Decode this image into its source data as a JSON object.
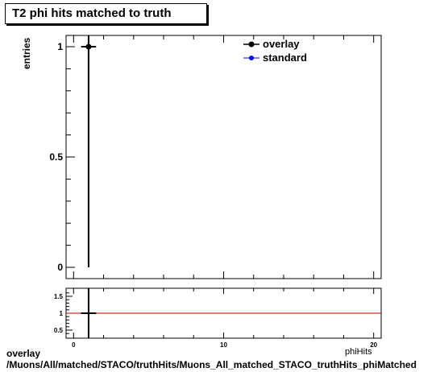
{
  "title": "T2 phi hits matched to truth",
  "ylabel": "entries",
  "xlabel_partial": "phiHits",
  "legend": [
    {
      "name": "overlay",
      "color": "#000000"
    },
    {
      "name": "standard",
      "color": "#0000ff"
    }
  ],
  "footer": {
    "line1": "overlay",
    "line2": "/Muons/All/matched/STACO/truthHits/Muons_All_matched_STACO_truthHits_phiMatched"
  },
  "chart_data": [
    {
      "type": "scatter",
      "panel": "main",
      "xlim": [
        -0.5,
        20.5
      ],
      "ylim": [
        0,
        1.05
      ],
      "yticks": [
        0,
        0.5,
        1
      ],
      "ytick_labels": [
        "0",
        "0.5",
        "1"
      ],
      "series": [
        {
          "name": "overlay",
          "x": [
            1
          ],
          "y": [
            1
          ],
          "yerr": [
            1
          ],
          "xerr": [
            0.5
          ],
          "color": "#000000"
        },
        {
          "name": "standard",
          "x": [],
          "y": [],
          "color": "#0000ff"
        }
      ]
    },
    {
      "type": "line",
      "panel": "ratio",
      "xlim": [
        -0.5,
        20.5
      ],
      "ylim": [
        0.3,
        1.7
      ],
      "yticks": [
        0.5,
        1,
        1.5
      ],
      "ytick_labels": [
        "0.5",
        "1",
        "1.5"
      ],
      "xticks": [
        0,
        10,
        20
      ],
      "xtick_labels": [
        "0",
        "10",
        "20"
      ],
      "reference_line": {
        "y": 1,
        "color": "#aa0000"
      },
      "series": [
        {
          "name": "ratio",
          "x": [
            1
          ],
          "y": [
            1
          ],
          "xerr": [
            0.5
          ],
          "yerr": [
            10
          ],
          "color": "#000000"
        }
      ]
    }
  ]
}
